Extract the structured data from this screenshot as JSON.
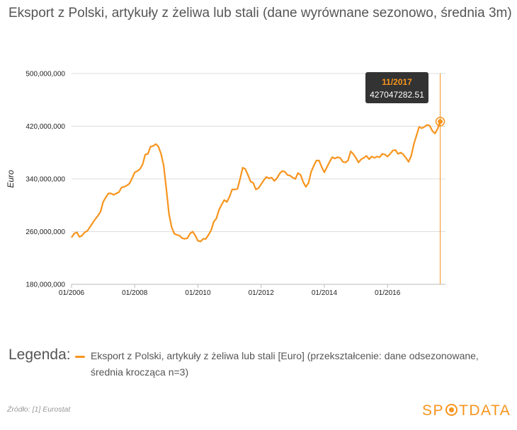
{
  "title": "Eksport z Polski, artykuły z żeliwa lub stali (dane wyrównane sezonowo, średnia 3m)",
  "legend": {
    "title": "Legenda:",
    "entry": "Eksport z Polski, artykuły z żeliwa lub stali [Euro] (przekształcenie: dane odsezonowane, średnia krocząca n=3)"
  },
  "source": "Źródło: [1] Eurostat",
  "logo": {
    "left": "SP",
    "right": "TDATA",
    "icon": "logo-o-icon"
  },
  "colors": {
    "line": "#f7941d",
    "accent": "#f7941d",
    "grid": "#dddddd",
    "tooltip_bg": "#333333"
  },
  "tooltip": {
    "date": "11/2017",
    "value": "427047282.51"
  },
  "chart_data": {
    "type": "line",
    "ylabel": "Euro",
    "xlabel": "",
    "ylim": [
      180000000,
      500000000
    ],
    "yticks": [
      180000000,
      260000000,
      340000000,
      420000000,
      500000000
    ],
    "ytick_labels": [
      "180,000,000",
      "260,000,000",
      "340,000,000",
      "420,000,000",
      "500,000,000"
    ],
    "xticks": [
      "01/2006",
      "01/2008",
      "01/2010",
      "01/2012",
      "01/2014",
      "01/2016"
    ],
    "x_start": "01/2006",
    "x_end": "11/2017",
    "grid": "horizontal",
    "series": [
      {
        "name": "Eksport z Polski, artykuły z żeliwa lub stali [Euro]",
        "values": [
          251000000,
          257000000,
          259000000,
          252000000,
          254000000,
          259000000,
          261000000,
          267000000,
          273000000,
          279000000,
          284000000,
          290000000,
          305000000,
          312000000,
          318000000,
          318000000,
          316000000,
          318000000,
          320000000,
          327000000,
          328000000,
          330000000,
          333000000,
          341000000,
          350000000,
          352000000,
          355000000,
          362000000,
          377000000,
          378000000,
          389000000,
          390000000,
          393000000,
          389000000,
          378000000,
          360000000,
          325000000,
          287000000,
          267000000,
          257000000,
          255000000,
          254000000,
          250000000,
          249000000,
          250000000,
          257000000,
          260000000,
          254000000,
          246000000,
          245000000,
          249000000,
          249000000,
          255000000,
          262000000,
          275000000,
          280000000,
          293000000,
          301000000,
          308000000,
          305000000,
          313000000,
          324000000,
          324000000,
          325000000,
          340000000,
          357000000,
          355000000,
          346000000,
          336000000,
          334000000,
          324000000,
          326000000,
          332000000,
          338000000,
          343000000,
          341000000,
          342000000,
          337000000,
          341000000,
          348000000,
          352000000,
          351000000,
          346000000,
          345000000,
          342000000,
          340000000,
          349000000,
          346000000,
          335000000,
          328000000,
          334000000,
          351000000,
          360000000,
          368000000,
          368000000,
          358000000,
          350000000,
          358000000,
          366000000,
          373000000,
          371000000,
          373000000,
          372000000,
          366000000,
          365000000,
          368000000,
          382000000,
          378000000,
          372000000,
          365000000,
          370000000,
          372000000,
          375000000,
          370000000,
          374000000,
          372000000,
          374000000,
          373000000,
          378000000,
          377000000,
          374000000,
          378000000,
          383000000,
          384000000,
          378000000,
          380000000,
          377000000,
          372000000,
          366000000,
          375000000,
          393000000,
          406000000,
          419000000,
          417000000,
          419000000,
          422000000,
          421000000,
          413000000,
          409000000,
          416000000,
          427047282.51
        ]
      }
    ]
  }
}
